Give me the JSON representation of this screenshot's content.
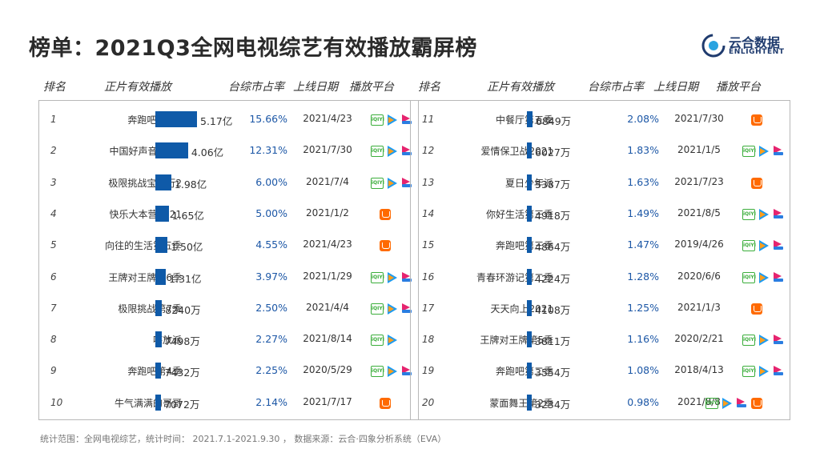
{
  "page": {
    "title": "榜单：2021Q3全网电视综艺有效播放霸屏榜",
    "logo_cn": "云合数据",
    "logo_en": "ENLIGHTENT",
    "footer": "统计范围：全网电视综艺，统计时间：  2021.7.1-2021.9.30 ，  数据来源：云合·四象分析系统（EVA）"
  },
  "headers": {
    "rank": "排名",
    "play": "正片有效播放",
    "share": "台综市占率",
    "date": "上线日期",
    "platform": "播放平台"
  },
  "icons": {
    "iqiyi": "iqiyi-icon",
    "tencent": "tencent-video-icon",
    "youku": "youku-icon",
    "mango": "mango-tv-icon"
  },
  "colors": {
    "bar": "#0f5aa8",
    "share_text": "#1c57a6"
  },
  "chart_data": {
    "type": "table",
    "unit_note": "正片有效播放 (亿 / 万)",
    "rows": [
      {
        "rank": "1",
        "name": "奔跑吧第5季",
        "play_label": "5.17亿",
        "play": 51700,
        "share": "15.66%",
        "date": "2021/4/23",
        "platforms": [
          "iqiyi",
          "tencent",
          "youku"
        ]
      },
      {
        "rank": "2",
        "name": "中国好声音2021",
        "play_label": "4.06亿",
        "play": 40600,
        "share": "12.31%",
        "date": "2021/7/30",
        "platforms": [
          "iqiyi",
          "tencent",
          "youku"
        ]
      },
      {
        "rank": "3",
        "name": "极限挑战宝藏行2",
        "play_label": "1.98亿",
        "play": 19800,
        "share": "6.00%",
        "date": "2021/7/4",
        "platforms": [
          "iqiyi",
          "tencent",
          "youku"
        ]
      },
      {
        "rank": "4",
        "name": "快乐大本营2021",
        "play_label": "1.65亿",
        "play": 16500,
        "share": "5.00%",
        "date": "2021/1/2",
        "platforms": [
          "mango"
        ]
      },
      {
        "rank": "5",
        "name": "向往的生活第五季",
        "play_label": "1.50亿",
        "play": 15000,
        "share": "4.55%",
        "date": "2021/4/23",
        "platforms": [
          "mango"
        ]
      },
      {
        "rank": "6",
        "name": "王牌对王牌第6季",
        "play_label": "1.31亿",
        "play": 13100,
        "share": "3.97%",
        "date": "2021/1/29",
        "platforms": [
          "iqiyi",
          "tencent",
          "youku"
        ]
      },
      {
        "rank": "7",
        "name": "极限挑战第7季",
        "play_label": "8240万",
        "play": 8240,
        "share": "2.50%",
        "date": "2021/4/4",
        "platforms": [
          "iqiyi",
          "tencent",
          "youku"
        ]
      },
      {
        "rank": "8",
        "name": "嗨放派",
        "play_label": "7498万",
        "play": 7498,
        "share": "2.27%",
        "date": "2021/8/14",
        "platforms": [
          "iqiyi",
          "tencent"
        ]
      },
      {
        "rank": "9",
        "name": "奔跑吧第4季",
        "play_label": "7432万",
        "play": 7432,
        "share": "2.25%",
        "date": "2020/5/29",
        "platforms": [
          "iqiyi",
          "tencent",
          "youku"
        ]
      },
      {
        "rank": "10",
        "name": "牛气满满的哥哥",
        "play_label": "7072万",
        "play": 7072,
        "share": "2.14%",
        "date": "2021/7/17",
        "platforms": [
          "mango"
        ]
      },
      {
        "rank": "11",
        "name": "中餐厅第五季",
        "play_label": "6849万",
        "play": 6849,
        "share": "2.08%",
        "date": "2021/7/30",
        "platforms": [
          "mango"
        ]
      },
      {
        "rank": "12",
        "name": "爱情保卫战2021",
        "play_label": "6027万",
        "play": 6027,
        "share": "1.83%",
        "date": "2021/1/5",
        "platforms": [
          "iqiyi",
          "tencent",
          "youku"
        ]
      },
      {
        "rank": "13",
        "name": "夏日少年派",
        "play_label": "5387万",
        "play": 5387,
        "share": "1.63%",
        "date": "2021/7/23",
        "platforms": [
          "mango"
        ]
      },
      {
        "rank": "14",
        "name": "你好生活第三季",
        "play_label": "4918万",
        "play": 4918,
        "share": "1.49%",
        "date": "2021/8/5",
        "platforms": [
          "iqiyi",
          "tencent",
          "youku"
        ]
      },
      {
        "rank": "15",
        "name": "奔跑吧第三季",
        "play_label": "4864万",
        "play": 4864,
        "share": "1.47%",
        "date": "2019/4/26",
        "platforms": [
          "iqiyi",
          "tencent",
          "youku"
        ]
      },
      {
        "rank": "16",
        "name": "青春环游记第二季",
        "play_label": "4224万",
        "play": 4224,
        "share": "1.28%",
        "date": "2020/6/6",
        "platforms": [
          "iqiyi",
          "tencent",
          "youku"
        ]
      },
      {
        "rank": "17",
        "name": "天天向上2021",
        "play_label": "4108万",
        "play": 4108,
        "share": "1.25%",
        "date": "2021/1/3",
        "platforms": [
          "mango"
        ]
      },
      {
        "rank": "18",
        "name": "王牌对王牌第5季",
        "play_label": "3811万",
        "play": 3811,
        "share": "1.16%",
        "date": "2020/2/21",
        "platforms": [
          "iqiyi",
          "tencent",
          "youku"
        ]
      },
      {
        "rank": "19",
        "name": "奔跑吧第二季",
        "play_label": "3554万",
        "play": 3554,
        "share": "1.08%",
        "date": "2018/4/13",
        "platforms": [
          "iqiyi",
          "tencent",
          "youku"
        ]
      },
      {
        "rank": "20",
        "name": "蒙面舞王第2季",
        "play_label": "3234万",
        "play": 3234,
        "share": "0.98%",
        "date": "2021/8/8",
        "platforms": [
          "iqiyi",
          "tencent",
          "youku",
          "mango"
        ]
      }
    ]
  }
}
